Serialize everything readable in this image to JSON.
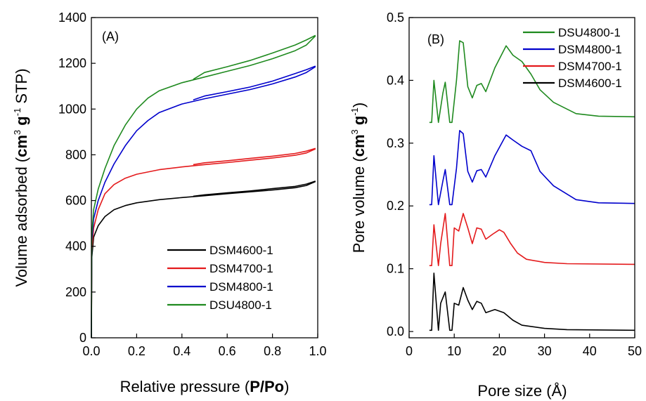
{
  "chart_data": [
    {
      "type": "line",
      "panel_label": "(A)",
      "xlabel": "Relative pressure (P/Po)",
      "ylabel": "Volume adsorbed (cm3 g-1 STP)",
      "xlim": [
        0.0,
        1.0
      ],
      "ylim": [
        0,
        1400
      ],
      "xticks": [
        0.0,
        0.2,
        0.4,
        0.6,
        0.8,
        1.0
      ],
      "xtick_labels": [
        "0.0",
        "0.2",
        "0.4",
        "0.6",
        "0.8",
        "1.0"
      ],
      "yticks": [
        0,
        200,
        400,
        600,
        800,
        1000,
        1200,
        1400
      ],
      "ytick_labels": [
        "0",
        "200",
        "400",
        "600",
        "800",
        "1000",
        "1200",
        "1400"
      ],
      "legend_position": "bottom-right",
      "grid": false,
      "series": [
        {
          "name": "DSM4600-1",
          "color": "#000000",
          "adsorption": [
            [
              0.0,
              0
            ],
            [
              0.002,
              350
            ],
            [
              0.01,
              440
            ],
            [
              0.03,
              490
            ],
            [
              0.06,
              530
            ],
            [
              0.1,
              560
            ],
            [
              0.15,
              578
            ],
            [
              0.2,
              590
            ],
            [
              0.3,
              604
            ],
            [
              0.4,
              613
            ],
            [
              0.5,
              621
            ],
            [
              0.6,
              630
            ],
            [
              0.7,
              638
            ],
            [
              0.8,
              646
            ],
            [
              0.9,
              656
            ],
            [
              0.95,
              666
            ],
            [
              0.99,
              683
            ]
          ],
          "desorption": [
            [
              0.99,
              685
            ],
            [
              0.95,
              672
            ],
            [
              0.9,
              662
            ],
            [
              0.8,
              652
            ],
            [
              0.7,
              642
            ],
            [
              0.6,
              634
            ],
            [
              0.5,
              625
            ],
            [
              0.45,
              619
            ]
          ]
        },
        {
          "name": "DSM4700-1",
          "color": "#e41a1c",
          "adsorption": [
            [
              0.0,
              0
            ],
            [
              0.002,
              380
            ],
            [
              0.01,
              480
            ],
            [
              0.03,
              560
            ],
            [
              0.06,
              630
            ],
            [
              0.1,
              670
            ],
            [
              0.15,
              698
            ],
            [
              0.2,
              715
            ],
            [
              0.3,
              735
            ],
            [
              0.4,
              747
            ],
            [
              0.5,
              757
            ],
            [
              0.6,
              766
            ],
            [
              0.7,
              776
            ],
            [
              0.8,
              786
            ],
            [
              0.9,
              798
            ],
            [
              0.95,
              808
            ],
            [
              0.99,
              826
            ]
          ],
          "desorption": [
            [
              0.99,
              828
            ],
            [
              0.95,
              816
            ],
            [
              0.9,
              806
            ],
            [
              0.8,
              794
            ],
            [
              0.7,
              784
            ],
            [
              0.6,
              774
            ],
            [
              0.5,
              765
            ],
            [
              0.45,
              757
            ]
          ]
        },
        {
          "name": "DSM4800-1",
          "color": "#0000cc",
          "adsorption": [
            [
              0.0,
              0
            ],
            [
              0.002,
              420
            ],
            [
              0.01,
              520
            ],
            [
              0.03,
              600
            ],
            [
              0.06,
              680
            ],
            [
              0.1,
              760
            ],
            [
              0.15,
              840
            ],
            [
              0.2,
              905
            ],
            [
              0.25,
              950
            ],
            [
              0.3,
              985
            ],
            [
              0.4,
              1022
            ],
            [
              0.5,
              1045
            ],
            [
              0.6,
              1065
            ],
            [
              0.7,
              1085
            ],
            [
              0.8,
              1110
            ],
            [
              0.9,
              1140
            ],
            [
              0.95,
              1160
            ],
            [
              0.99,
              1185
            ]
          ],
          "desorption": [
            [
              0.99,
              1188
            ],
            [
              0.95,
              1172
            ],
            [
              0.9,
              1155
            ],
            [
              0.8,
              1122
            ],
            [
              0.7,
              1096
            ],
            [
              0.6,
              1076
            ],
            [
              0.5,
              1057
            ],
            [
              0.45,
              1040
            ]
          ]
        },
        {
          "name": "DSU4800-1",
          "color": "#1f8a1f",
          "adsorption": [
            [
              0.0,
              0
            ],
            [
              0.002,
              450
            ],
            [
              0.01,
              560
            ],
            [
              0.03,
              650
            ],
            [
              0.06,
              740
            ],
            [
              0.1,
              840
            ],
            [
              0.15,
              930
            ],
            [
              0.2,
              1000
            ],
            [
              0.25,
              1048
            ],
            [
              0.3,
              1080
            ],
            [
              0.4,
              1115
            ],
            [
              0.5,
              1140
            ],
            [
              0.6,
              1165
            ],
            [
              0.7,
              1190
            ],
            [
              0.8,
              1220
            ],
            [
              0.9,
              1255
            ],
            [
              0.95,
              1280
            ],
            [
              0.99,
              1320
            ]
          ],
          "desorption": [
            [
              0.99,
              1322
            ],
            [
              0.95,
              1302
            ],
            [
              0.9,
              1280
            ],
            [
              0.8,
              1245
            ],
            [
              0.7,
              1212
            ],
            [
              0.6,
              1185
            ],
            [
              0.5,
              1160
            ],
            [
              0.45,
              1130
            ]
          ]
        }
      ]
    },
    {
      "type": "line",
      "panel_label": "(B)",
      "xlabel": "Pore size (Å)",
      "ylabel": "Pore volume (cm3 g-1)",
      "xlim": [
        0,
        50
      ],
      "ylim": [
        -0.01,
        0.5
      ],
      "xticks": [
        0,
        10,
        20,
        30,
        40,
        50
      ],
      "xtick_labels": [
        "0",
        "10",
        "20",
        "30",
        "40",
        "50"
      ],
      "yticks": [
        0.0,
        0.1,
        0.2,
        0.3,
        0.4,
        0.5
      ],
      "ytick_labels": [
        "0.0",
        "0.1",
        "0.2",
        "0.3",
        "0.4",
        "0.5"
      ],
      "legend_position": "top-right",
      "grid": false,
      "series": [
        {
          "name": "DSU4800-1",
          "color": "#1f8a1f",
          "points": [
            [
              4.5,
              0.333
            ],
            [
              5.0,
              0.333
            ],
            [
              5.5,
              0.4
            ],
            [
              6.5,
              0.333
            ],
            [
              7.5,
              0.38
            ],
            [
              8.0,
              0.397
            ],
            [
              9.0,
              0.333
            ],
            [
              9.5,
              0.333
            ],
            [
              10.5,
              0.4
            ],
            [
              11.2,
              0.463
            ],
            [
              12.0,
              0.46
            ],
            [
              13.0,
              0.39
            ],
            [
              14.0,
              0.372
            ],
            [
              15.0,
              0.392
            ],
            [
              16.0,
              0.395
            ],
            [
              17.0,
              0.382
            ],
            [
              19.0,
              0.42
            ],
            [
              21.5,
              0.455
            ],
            [
              23.0,
              0.44
            ],
            [
              25.0,
              0.43
            ],
            [
              27.0,
              0.41
            ],
            [
              29.0,
              0.385
            ],
            [
              32.0,
              0.365
            ],
            [
              37.0,
              0.347
            ],
            [
              42.0,
              0.343
            ],
            [
              50.0,
              0.342
            ]
          ]
        },
        {
          "name": "DSM4800-1",
          "color": "#0000cc",
          "points": [
            [
              4.5,
              0.202
            ],
            [
              5.0,
              0.202
            ],
            [
              5.5,
              0.28
            ],
            [
              6.5,
              0.202
            ],
            [
              7.5,
              0.24
            ],
            [
              8.0,
              0.258
            ],
            [
              9.0,
              0.202
            ],
            [
              9.5,
              0.202
            ],
            [
              10.5,
              0.26
            ],
            [
              11.2,
              0.32
            ],
            [
              12.0,
              0.315
            ],
            [
              13.0,
              0.255
            ],
            [
              14.0,
              0.238
            ],
            [
              15.0,
              0.256
            ],
            [
              16.0,
              0.258
            ],
            [
              17.0,
              0.246
            ],
            [
              19.0,
              0.28
            ],
            [
              21.5,
              0.313
            ],
            [
              23.0,
              0.305
            ],
            [
              25.0,
              0.295
            ],
            [
              27.0,
              0.288
            ],
            [
              29.0,
              0.255
            ],
            [
              32.0,
              0.232
            ],
            [
              37.0,
              0.21
            ],
            [
              42.0,
              0.205
            ],
            [
              50.0,
              0.204
            ]
          ]
        },
        {
          "name": "DSM4700-1",
          "color": "#e41a1c",
          "points": [
            [
              4.5,
              0.105
            ],
            [
              5.0,
              0.105
            ],
            [
              5.5,
              0.17
            ],
            [
              6.5,
              0.105
            ],
            [
              7.0,
              0.14
            ],
            [
              8.0,
              0.188
            ],
            [
              9.0,
              0.105
            ],
            [
              9.5,
              0.105
            ],
            [
              10.0,
              0.165
            ],
            [
              11.0,
              0.16
            ],
            [
              12.0,
              0.188
            ],
            [
              13.0,
              0.165
            ],
            [
              14.0,
              0.14
            ],
            [
              15.0,
              0.165
            ],
            [
              16.0,
              0.163
            ],
            [
              17.0,
              0.147
            ],
            [
              18.5,
              0.155
            ],
            [
              20.0,
              0.162
            ],
            [
              21.0,
              0.158
            ],
            [
              22.5,
              0.14
            ],
            [
              24.0,
              0.125
            ],
            [
              26.0,
              0.115
            ],
            [
              30.0,
              0.11
            ],
            [
              35.0,
              0.108
            ],
            [
              50.0,
              0.107
            ]
          ]
        },
        {
          "name": "DSM4600-1",
          "color": "#000000",
          "points": [
            [
              4.5,
              0.002
            ],
            [
              5.0,
              0.002
            ],
            [
              5.5,
              0.093
            ],
            [
              6.5,
              0.002
            ],
            [
              7.0,
              0.045
            ],
            [
              8.0,
              0.063
            ],
            [
              9.0,
              0.002
            ],
            [
              9.5,
              0.002
            ],
            [
              10.0,
              0.045
            ],
            [
              11.0,
              0.042
            ],
            [
              12.0,
              0.07
            ],
            [
              13.0,
              0.05
            ],
            [
              14.0,
              0.035
            ],
            [
              15.0,
              0.048
            ],
            [
              16.0,
              0.045
            ],
            [
              17.0,
              0.03
            ],
            [
              19.0,
              0.035
            ],
            [
              21.0,
              0.03
            ],
            [
              23.0,
              0.018
            ],
            [
              25.0,
              0.01
            ],
            [
              30.0,
              0.005
            ],
            [
              35.0,
              0.003
            ],
            [
              50.0,
              0.002
            ]
          ]
        }
      ]
    }
  ]
}
